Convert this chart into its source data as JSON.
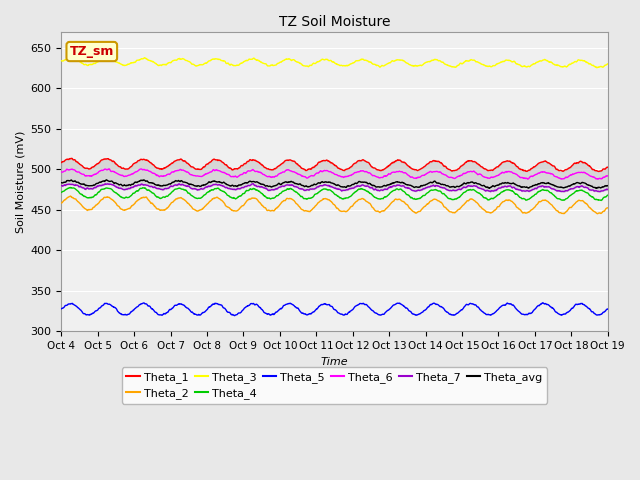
{
  "title": "TZ Soil Moisture",
  "xlabel": "Time",
  "ylabel": "Soil Moisture (mV)",
  "ylim": [
    300,
    670
  ],
  "yticks": [
    300,
    350,
    400,
    450,
    500,
    550,
    600,
    650
  ],
  "n_points": 1500,
  "series": {
    "Theta_1": {
      "color": "#ff0000",
      "base": 507,
      "trend": -0.01,
      "amp": 6,
      "freq": 15
    },
    "Theta_2": {
      "color": "#ffa500",
      "base": 458,
      "trend": -0.013,
      "amp": 8,
      "freq": 15
    },
    "Theta_3": {
      "color": "#ffff00",
      "base": 633,
      "trend": -0.008,
      "amp": 4,
      "freq": 15
    },
    "Theta_4": {
      "color": "#00cc00",
      "base": 471,
      "trend": -0.008,
      "amp": 6,
      "freq": 15
    },
    "Theta_5": {
      "color": "#0000ff",
      "base": 327,
      "trend": 0.001,
      "amp": 7,
      "freq": 15
    },
    "Theta_6": {
      "color": "#ff00ff",
      "base": 496,
      "trend": -0.01,
      "amp": 4,
      "freq": 15
    },
    "Theta_7": {
      "color": "#9900cc",
      "base": 479,
      "trend": -0.01,
      "amp": 3,
      "freq": 15
    },
    "Theta_avg": {
      "color": "#000000",
      "base": 483,
      "trend": -0.008,
      "amp": 3,
      "freq": 15
    }
  },
  "xtick_labels": [
    "Oct 4",
    "Oct 5",
    "Oct 6",
    "Oct 7",
    "Oct 8",
    "Oct 9",
    "Oct 10",
    "Oct 11",
    "Oct 12",
    "Oct 13",
    "Oct 14",
    "Oct 15",
    "Oct 16",
    "Oct 17",
    "Oct 18",
    "Oct 19"
  ],
  "bg_color": "#e8e8e8",
  "plot_bg": "#f0f0f0",
  "band_color": "#cccccc",
  "band_alpha": 0.7,
  "legend_box_facecolor": "#ffffcc",
  "legend_box_edgecolor": "#cc9900",
  "legend_text_color": "#cc0000",
  "legend_order_row1": [
    "Theta_1",
    "Theta_2",
    "Theta_3",
    "Theta_4",
    "Theta_5",
    "Theta_6"
  ],
  "legend_order_row2": [
    "Theta_7",
    "Theta_avg"
  ]
}
